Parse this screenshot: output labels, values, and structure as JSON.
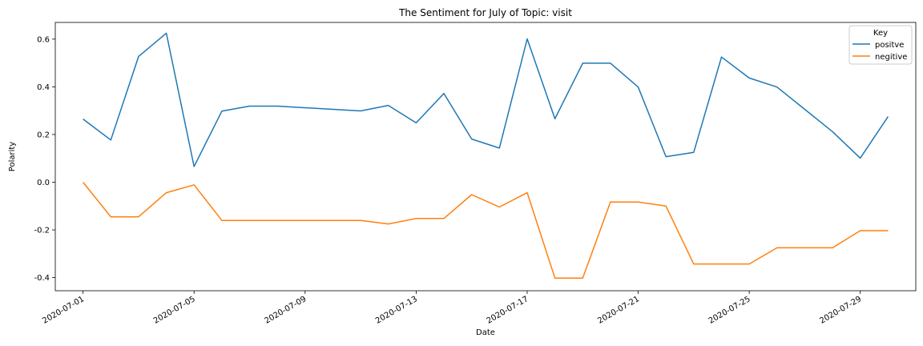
{
  "chart_data": {
    "type": "line",
    "title": "The Sentiment for July of Topic: visit",
    "xlabel": "Date",
    "ylabel": "Polarity",
    "x": [
      "2020-07-01",
      "2020-07-02",
      "2020-07-03",
      "2020-07-04",
      "2020-07-05",
      "2020-07-06",
      "2020-07-07",
      "2020-07-08",
      "2020-07-11",
      "2020-07-12",
      "2020-07-13",
      "2020-07-14",
      "2020-07-15",
      "2020-07-16",
      "2020-07-17",
      "2020-07-18",
      "2020-07-19",
      "2020-07-20",
      "2020-07-21",
      "2020-07-22",
      "2020-07-23",
      "2020-07-24",
      "2020-07-25",
      "2020-07-26",
      "2020-07-28",
      "2020-07-29",
      "2020-07-30"
    ],
    "series": [
      {
        "name": "positve",
        "color": "#1f77b4",
        "values": [
          0.265,
          0.177,
          0.527,
          0.625,
          0.066,
          0.298,
          0.319,
          0.319,
          0.299,
          0.322,
          0.249,
          0.372,
          0.181,
          0.143,
          0.601,
          0.266,
          0.499,
          0.499,
          0.399,
          0.107,
          0.125,
          0.525,
          0.437,
          0.399,
          0.212,
          0.101,
          0.275
        ]
      },
      {
        "name": "negitive",
        "color": "#ff7f0e",
        "values": [
          0.0,
          -0.145,
          -0.145,
          -0.044,
          -0.011,
          -0.16,
          -0.16,
          -0.16,
          -0.16,
          -0.175,
          -0.152,
          -0.152,
          -0.052,
          -0.104,
          -0.044,
          -0.402,
          -0.402,
          -0.083,
          -0.083,
          -0.1,
          -0.343,
          -0.343,
          -0.343,
          -0.275,
          -0.275,
          -0.203,
          -0.203
        ]
      }
    ],
    "xticks": [
      "2020-07-01",
      "2020-07-05",
      "2020-07-09",
      "2020-07-13",
      "2020-07-17",
      "2020-07-21",
      "2020-07-25",
      "2020-07-29"
    ],
    "yticks": [
      -0.4,
      -0.2,
      0.0,
      0.2,
      0.4,
      0.6
    ],
    "ytick_labels": [
      "-0.4",
      "-0.2",
      "0.0",
      "0.2",
      "0.4",
      "0.6"
    ],
    "xlim": [
      "2020-06-30",
      "2020-07-31"
    ],
    "ylim": [
      -0.455,
      0.67
    ],
    "legend": {
      "title": "Key",
      "placement": "top-right"
    },
    "grid": false
  }
}
